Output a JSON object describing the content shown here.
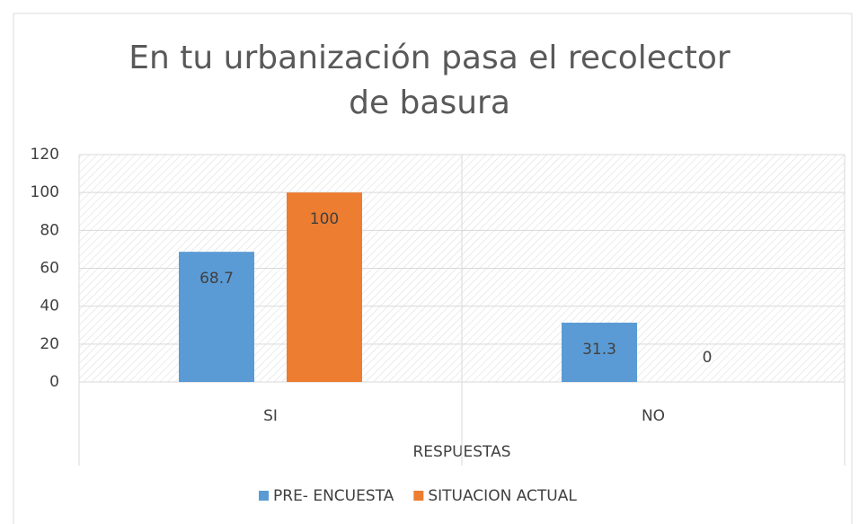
{
  "chart_data": {
    "type": "bar",
    "title": "En tu urbanización pasa el recolector de basura",
    "x_label": "RESPUESTAS",
    "categories": [
      "SI",
      "NO"
    ],
    "series": [
      {
        "name": "PRE- ENCUESTA",
        "color": "#5b9bd5",
        "values": [
          68.7,
          31.3
        ]
      },
      {
        "name": "SITUACION ACTUAL",
        "color": "#ed7d31",
        "values": [
          100,
          0
        ]
      }
    ],
    "ylim": [
      0,
      120
    ],
    "yticks": [
      0,
      20,
      40,
      60,
      80,
      100,
      120
    ],
    "grid": true,
    "legend": "bottom"
  }
}
